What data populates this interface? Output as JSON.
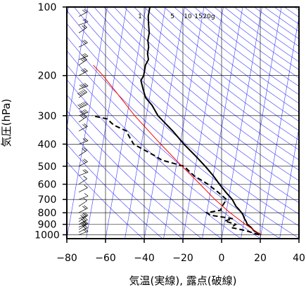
{
  "chart_data": {
    "type": "line",
    "title": "",
    "xlabel": "気温(実線), 露点(破線)",
    "ylabel": "気圧(hPa)",
    "xlim": [
      -80,
      40
    ],
    "ylim": [
      1040,
      100
    ],
    "y_scale": "log",
    "grid": true,
    "x_ticks": [
      -80,
      -60,
      -40,
      -20,
      0,
      20,
      40
    ],
    "x_tick_labels": [
      "−80",
      "−60",
      "−40",
      "−20",
      "0",
      "20",
      "40"
    ],
    "y_ticks": [
      100,
      200,
      300,
      400,
      500,
      600,
      700,
      800,
      900,
      1000
    ],
    "y_tick_labels": [
      "100",
      "200",
      "300",
      "400",
      "500",
      "600",
      "700",
      "800",
      "900",
      "1000"
    ],
    "mixing_ratio_labels": [
      "1",
      "5",
      "10",
      "15",
      "20g"
    ],
    "colors": {
      "temperature": "#000000",
      "dewpoint": "#000000",
      "parcel": "#ff0000",
      "isotherm": "#3a3aff",
      "dry_adiabat": "#3a3aff",
      "grid": "#000000"
    },
    "series": [
      {
        "style": "solid",
        "p": [
          1000,
          960,
          925,
          900,
          870,
          850,
          820,
          800,
          770,
          750,
          700,
          650,
          600,
          550,
          500,
          450,
          400,
          350,
          300,
          270,
          250,
          230,
          210,
          200,
          190,
          180,
          170,
          160,
          150,
          140,
          130,
          120,
          110,
          100
        ],
        "t": [
          20,
          16,
          14,
          12,
          11,
          10,
          9,
          8,
          6,
          4.5,
          2,
          -2,
          -6,
          -10,
          -15,
          -21,
          -28,
          -35,
          -44,
          -48,
          -52,
          -54,
          -56,
          -55,
          -55,
          -55,
          -54,
          -55,
          -55,
          -56,
          -56,
          -57,
          -58,
          -58
        ]
      },
      {
        "style": "dashed",
        "p": [
          1000,
          960,
          930,
          900,
          870,
          850,
          820,
          800,
          780,
          760,
          700,
          650,
          600,
          550,
          500,
          470,
          450,
          400,
          370,
          350,
          330,
          310,
          300
        ],
        "t": [
          19,
          12,
          4,
          6,
          0,
          4,
          -8,
          -10,
          -3,
          -3,
          -1,
          -6,
          -12,
          -20,
          -26,
          -38,
          -42,
          -54,
          -57,
          -59,
          -66,
          -70,
          -78
        ]
      },
      {
        "style": "solid",
        "p": [
          1000,
          900,
          800,
          700,
          600,
          500,
          400,
          300,
          250,
          200,
          180
        ],
        "t": [
          20,
          11,
          2,
          -7,
          -16,
          -27,
          -40,
          -56,
          -65,
          -76,
          -82
        ]
      }
    ],
    "wind_barbs": {
      "p": [
        1000,
        975,
        950,
        925,
        900,
        875,
        850,
        800,
        750,
        700,
        650,
        600,
        550,
        500,
        450,
        400,
        350,
        320,
        300,
        280,
        250,
        230,
        200,
        180,
        170,
        150,
        130,
        120,
        110,
        100
      ],
      "speed_kt": [
        15,
        20,
        25,
        25,
        30,
        25,
        20,
        15,
        10,
        10,
        10,
        10,
        15,
        15,
        15,
        15,
        20,
        25,
        35,
        45,
        50,
        40,
        30,
        30,
        25,
        20,
        15,
        15,
        20,
        20
      ]
    }
  }
}
